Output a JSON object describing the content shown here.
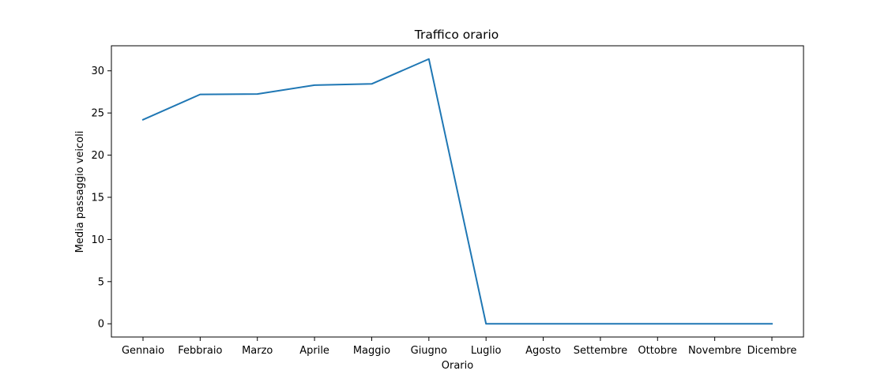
{
  "chart_data": {
    "type": "line",
    "title": "Traffico orario",
    "xlabel": "Orario",
    "ylabel": "Media passaggio veicoli",
    "categories": [
      "Gennaio",
      "Febbraio",
      "Marzo",
      "Aprile",
      "Maggio",
      "Giugno",
      "Luglio",
      "Agosto",
      "Settembre",
      "Ottobre",
      "Novembre",
      "Dicembre"
    ],
    "series": [
      {
        "values": [
          24.2,
          27.2,
          27.25,
          28.3,
          28.45,
          31.4,
          0,
          0,
          0,
          0,
          0,
          0
        ],
        "color": "#1f77b4"
      }
    ],
    "ylim": [
      -1.57,
      32.97
    ],
    "yticks": [
      0,
      5,
      10,
      15,
      20,
      25,
      30
    ],
    "grid": false,
    "legend": "none"
  }
}
